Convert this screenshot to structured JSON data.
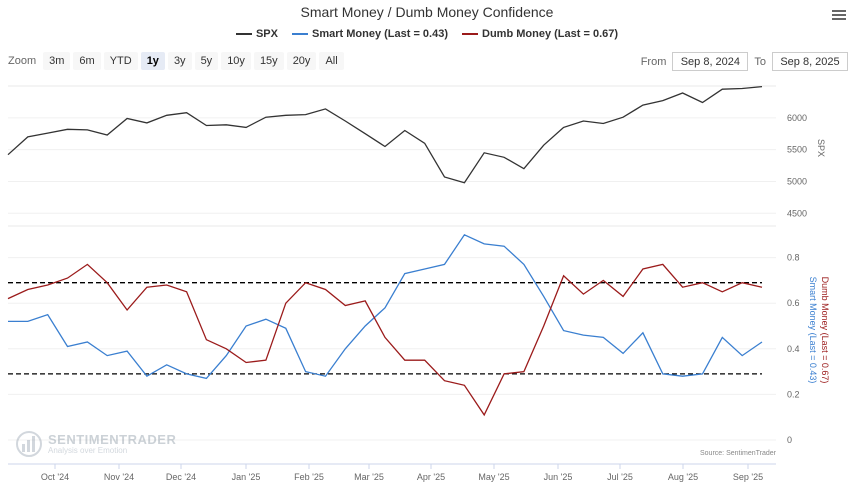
{
  "title": "Smart Money / Dumb Money Confidence",
  "legend": [
    {
      "name": "SPX",
      "color": "#333333"
    },
    {
      "name": "Smart Money (Last = 0.43)",
      "color": "#3a7fd0"
    },
    {
      "name": "Dumb Money (Last = 0.67)",
      "color": "#9b1b1b"
    }
  ],
  "zoom": {
    "label": "Zoom",
    "buttons": [
      "3m",
      "6m",
      "YTD",
      "1y",
      "3y",
      "5y",
      "10y",
      "15y",
      "20y",
      "All"
    ],
    "active": "1y"
  },
  "range": {
    "from_label": "From",
    "from_value": "Sep 8, 2024",
    "to_label": "To",
    "to_value": "Sep 8, 2025"
  },
  "watermark": {
    "name": "SENTIMENTRADER",
    "tagline": "Analysis over Emotion"
  },
  "source": "Source: SentimenTrader",
  "colors": {
    "spx": "#333333",
    "smart": "#3a7fd0",
    "dumb": "#9b1b1b",
    "threshold": "#000000"
  },
  "chart_data": [
    {
      "type": "line",
      "title": "SPX",
      "ylabel": "SPX",
      "ylim": [
        4300,
        6500
      ],
      "yticks": [
        "6000",
        "5500",
        "5000",
        "4500"
      ],
      "x": [
        "Sep 8",
        "Sep 20",
        "Oct 1",
        "Oct 15",
        "Oct 25",
        "Nov 1",
        "Nov 8",
        "Nov 20",
        "Dec 1",
        "Dec 10",
        "Dec 20",
        "Dec 31",
        "Jan 10",
        "Jan 20",
        "Jan 31",
        "Feb 10",
        "Feb 19",
        "Feb 28",
        "Mar 7",
        "Mar 13",
        "Mar 25",
        "Apr 1",
        "Apr 4",
        "Apr 8",
        "Apr 9",
        "Apr 15",
        "Apr 21",
        "Apr 30",
        "May 12",
        "May 20",
        "Jun 1",
        "Jun 15",
        "Jun 30",
        "Jul 10",
        "Jul 25",
        "Aug 1",
        "Aug 15",
        "Aug 30",
        "Sep 8"
      ],
      "series": [
        {
          "name": "SPX",
          "values": [
            5420,
            5700,
            5760,
            5820,
            5810,
            5730,
            5990,
            5920,
            6040,
            6080,
            5880,
            5890,
            5850,
            6010,
            6040,
            6050,
            6140,
            5950,
            5750,
            5550,
            5800,
            5600,
            5070,
            4980,
            5450,
            5380,
            5200,
            5570,
            5850,
            5950,
            5910,
            6010,
            6200,
            6270,
            6390,
            6240,
            6450,
            6460,
            6490
          ]
        }
      ]
    },
    {
      "type": "line",
      "title": "Smart Money / Dumb Money Confidence",
      "ylabel": "Smart Money (Last = 0.43)",
      "y2label": "Dumb Money (Last = 0.67)",
      "ylim": [
        0,
        0.9
      ],
      "yticks": [
        "0.8",
        "0.6",
        "0.4",
        "0.2",
        "0"
      ],
      "xticks": [
        "Oct '24",
        "Nov '24",
        "Dec '24",
        "Jan '25",
        "Feb '25",
        "Mar '25",
        "Apr '25",
        "May '25",
        "Jun '25",
        "Jul '25",
        "Aug '25",
        "Sep '25"
      ],
      "thresholds": [
        0.69,
        0.29
      ],
      "x": [
        "Sep 8",
        "Sep 20",
        "Oct 1",
        "Oct 15",
        "Oct 25",
        "Nov 1",
        "Nov 8",
        "Nov 20",
        "Dec 1",
        "Dec 10",
        "Dec 20",
        "Dec 31",
        "Jan 10",
        "Jan 20",
        "Jan 31",
        "Feb 10",
        "Feb 19",
        "Feb 28",
        "Mar 7",
        "Mar 13",
        "Mar 25",
        "Apr 1",
        "Apr 4",
        "Apr 8",
        "Apr 9",
        "Apr 15",
        "Apr 21",
        "Apr 30",
        "May 12",
        "May 20",
        "Jun 1",
        "Jun 15",
        "Jun 30",
        "Jul 10",
        "Jul 25",
        "Aug 1",
        "Aug 15",
        "Aug 30",
        "Sep 8"
      ],
      "series": [
        {
          "name": "Smart Money",
          "values": [
            0.52,
            0.52,
            0.55,
            0.41,
            0.43,
            0.37,
            0.39,
            0.28,
            0.33,
            0.29,
            0.27,
            0.37,
            0.5,
            0.53,
            0.49,
            0.3,
            0.28,
            0.4,
            0.5,
            0.58,
            0.73,
            0.75,
            0.77,
            0.9,
            0.86,
            0.85,
            0.77,
            0.63,
            0.48,
            0.46,
            0.45,
            0.38,
            0.47,
            0.29,
            0.28,
            0.29,
            0.45,
            0.37,
            0.43
          ]
        },
        {
          "name": "Dumb Money",
          "values": [
            0.62,
            0.66,
            0.68,
            0.71,
            0.77,
            0.69,
            0.57,
            0.67,
            0.68,
            0.65,
            0.44,
            0.4,
            0.34,
            0.35,
            0.6,
            0.69,
            0.66,
            0.59,
            0.61,
            0.45,
            0.35,
            0.35,
            0.26,
            0.24,
            0.11,
            0.29,
            0.3,
            0.5,
            0.72,
            0.64,
            0.7,
            0.63,
            0.75,
            0.77,
            0.67,
            0.69,
            0.65,
            0.69,
            0.67
          ]
        }
      ]
    }
  ]
}
